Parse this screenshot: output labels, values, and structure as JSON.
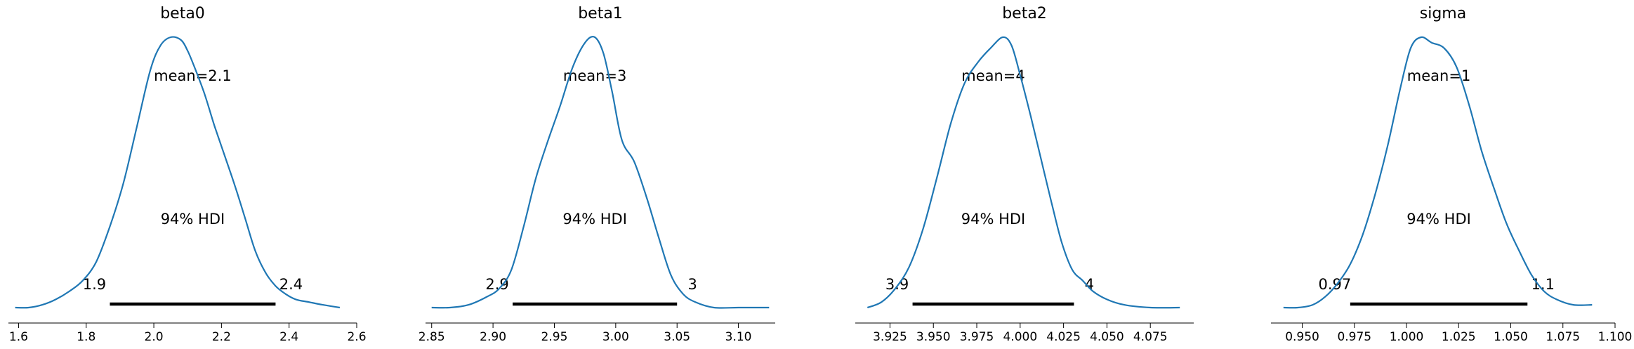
{
  "colors": {
    "density_line": "#1f77b4",
    "hdi_bar": "#000000",
    "axis": "#000000"
  },
  "chart_data": [
    {
      "type": "line",
      "title": "beta0",
      "xlabel": "",
      "ylabel": "",
      "xlim": [
        1.57,
        2.6
      ],
      "grid": false,
      "xticks": [
        1.6,
        1.8,
        2.0,
        2.2,
        2.4,
        2.6
      ],
      "xtick_labels": [
        "1.6",
        "1.8",
        "2.0",
        "2.2",
        "2.4",
        "2.6"
      ],
      "mean_label": "mean=2.1",
      "hdi_label": "94% HDI",
      "hdi": [
        1.87,
        2.36
      ],
      "hdi_lower_label": "1.9",
      "hdi_upper_label": "2.4",
      "density": {
        "x": [
          1.59,
          1.63,
          1.67,
          1.71,
          1.75,
          1.79,
          1.83,
          1.87,
          1.91,
          1.95,
          1.99,
          2.02,
          2.05,
          2.08,
          2.1,
          2.12,
          2.15,
          2.18,
          2.21,
          2.24,
          2.27,
          2.3,
          2.33,
          2.36,
          2.39,
          2.42,
          2.46,
          2.5,
          2.55
        ],
        "y": [
          0.0,
          0.0,
          0.01,
          0.03,
          0.06,
          0.1,
          0.17,
          0.3,
          0.46,
          0.67,
          0.88,
          0.97,
          1.0,
          0.99,
          0.95,
          0.89,
          0.79,
          0.67,
          0.56,
          0.45,
          0.33,
          0.21,
          0.13,
          0.08,
          0.05,
          0.03,
          0.02,
          0.01,
          0.0
        ]
      }
    },
    {
      "type": "line",
      "title": "beta1",
      "xlabel": "",
      "ylabel": "",
      "xlim": [
        2.845,
        3.13
      ],
      "grid": false,
      "xticks": [
        2.85,
        2.9,
        2.95,
        3.0,
        3.05,
        3.1
      ],
      "xtick_labels": [
        "2.85",
        "2.90",
        "2.95",
        "3.00",
        "3.05",
        "3.10"
      ],
      "mean_label": "mean=3",
      "hdi_label": "94% HDI",
      "hdi": [
        2.916,
        3.05
      ],
      "hdi_lower_label": "2.9",
      "hdi_upper_label": "3",
      "density": {
        "x": [
          2.85,
          2.865,
          2.88,
          2.895,
          2.905,
          2.915,
          2.925,
          2.935,
          2.945,
          2.955,
          2.965,
          2.975,
          2.983,
          2.99,
          2.997,
          3.005,
          3.015,
          3.025,
          3.035,
          3.045,
          3.055,
          3.065,
          3.08,
          3.1,
          3.125
        ],
        "y": [
          0.0,
          0.0,
          0.01,
          0.04,
          0.07,
          0.14,
          0.3,
          0.48,
          0.62,
          0.75,
          0.89,
          0.98,
          1.0,
          0.94,
          0.8,
          0.62,
          0.54,
          0.41,
          0.26,
          0.12,
          0.05,
          0.02,
          0.0,
          0.0,
          0.0
        ]
      }
    },
    {
      "type": "line",
      "title": "beta2",
      "xlabel": "",
      "ylabel": "",
      "xlim": [
        3.905,
        4.1
      ],
      "grid": false,
      "xticks": [
        3.925,
        3.95,
        3.975,
        4.0,
        4.025,
        4.05,
        4.075
      ],
      "xtick_labels": [
        "3.925",
        "3.950",
        "3.975",
        "4.000",
        "4.025",
        "4.050",
        "4.075"
      ],
      "mean_label": "mean=4",
      "hdi_label": "94% HDI",
      "hdi": [
        3.938,
        4.031
      ],
      "hdi_lower_label": "3.9",
      "hdi_upper_label": "4",
      "density": {
        "x": [
          3.912,
          3.92,
          3.928,
          3.936,
          3.944,
          3.952,
          3.96,
          3.968,
          3.976,
          3.983,
          3.99,
          3.995,
          4.0,
          4.006,
          4.012,
          4.018,
          4.024,
          4.03,
          4.036,
          4.042,
          4.05,
          4.06,
          4.075,
          4.092
        ],
        "y": [
          0.0,
          0.02,
          0.07,
          0.15,
          0.29,
          0.48,
          0.68,
          0.83,
          0.91,
          0.96,
          1.0,
          0.97,
          0.86,
          0.71,
          0.55,
          0.39,
          0.24,
          0.14,
          0.1,
          0.06,
          0.03,
          0.01,
          0.0,
          0.0
        ]
      }
    },
    {
      "type": "line",
      "title": "sigma",
      "xlabel": "",
      "ylabel": "",
      "xlim": [
        0.935,
        1.1
      ],
      "grid": false,
      "xticks": [
        0.95,
        0.975,
        1.0,
        1.025,
        1.05,
        1.075,
        1.1
      ],
      "xtick_labels": [
        "0.950",
        "0.975",
        "1.000",
        "1.025",
        "1.050",
        "1.075",
        "1.100"
      ],
      "mean_label": "mean=1",
      "hdi_label": "94% HDI",
      "hdi": [
        0.973,
        1.058
      ],
      "hdi_lower_label": "0.97",
      "hdi_upper_label": "1.1",
      "density": {
        "x": [
          0.941,
          0.948,
          0.955,
          0.961,
          0.967,
          0.973,
          0.979,
          0.985,
          0.991,
          0.997,
          1.002,
          1.007,
          1.012,
          1.018,
          1.024,
          1.03,
          1.036,
          1.042,
          1.048,
          1.054,
          1.06,
          1.066,
          1.072,
          1.08,
          1.089
        ],
        "y": [
          0.0,
          0.0,
          0.01,
          0.04,
          0.09,
          0.16,
          0.27,
          0.42,
          0.6,
          0.81,
          0.96,
          1.0,
          0.98,
          0.96,
          0.89,
          0.75,
          0.58,
          0.44,
          0.31,
          0.21,
          0.12,
          0.06,
          0.03,
          0.01,
          0.01
        ]
      }
    }
  ]
}
